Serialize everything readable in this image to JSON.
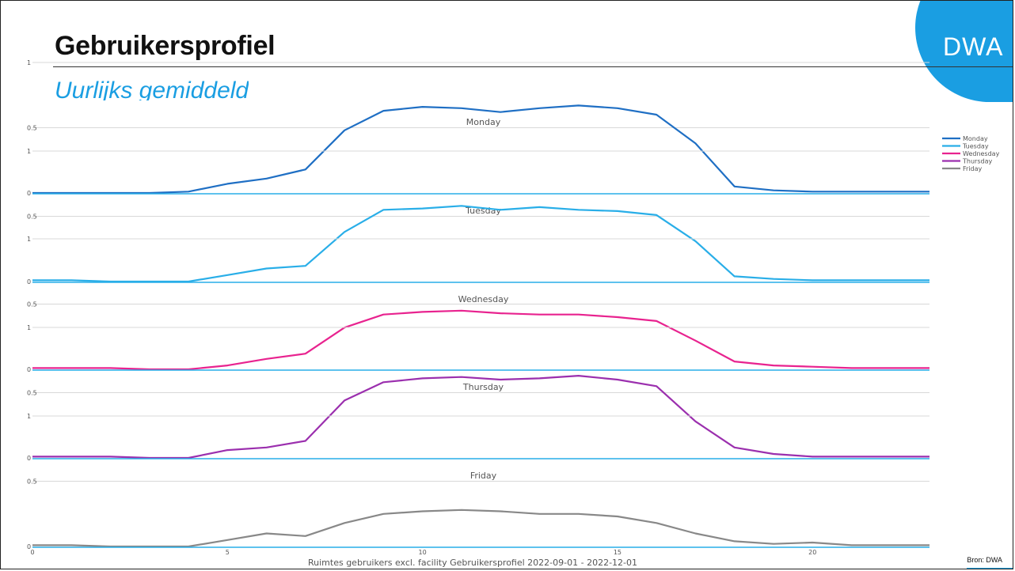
{
  "header": {
    "title": "Gebruikersprofiel",
    "subtitle": "Uurlijks gemiddeld",
    "logo_text": "DWA",
    "source": "Bron: DWA"
  },
  "colors": {
    "accent": "#1a9ee2",
    "title": "#111111"
  },
  "chart_data": {
    "type": "line",
    "xlabel": "Ruimtes gebruikers excl. facility Gebruikersprofiel 2022-09-01 - 2022-12-01",
    "xlim": [
      0,
      23
    ],
    "x_ticks": [
      0,
      5,
      10,
      15,
      20
    ],
    "ylim": [
      0,
      1
    ],
    "y_ticks": [
      "0",
      "0.5",
      "1"
    ],
    "grid": true,
    "legend_position": "top-right",
    "x": [
      0,
      1,
      2,
      3,
      4,
      5,
      6,
      7,
      8,
      9,
      10,
      11,
      12,
      13,
      14,
      15,
      16,
      17,
      18,
      19,
      20,
      21,
      22,
      23
    ],
    "series": [
      {
        "name": "Monday",
        "color": "#1f6fc4",
        "values": [
          0,
          0,
          0,
          0,
          0.01,
          0.07,
          0.11,
          0.18,
          0.48,
          0.63,
          0.66,
          0.65,
          0.62,
          0.65,
          0.67,
          0.65,
          0.6,
          0.38,
          0.05,
          0.02,
          0.01,
          0.01,
          0.01,
          0.01
        ]
      },
      {
        "name": "Tuesday",
        "color": "#29aee8",
        "values": [
          0.01,
          0.01,
          0,
          0,
          0,
          0.05,
          0.1,
          0.12,
          0.38,
          0.55,
          0.56,
          0.58,
          0.55,
          0.57,
          0.55,
          0.54,
          0.51,
          0.31,
          0.04,
          0.02,
          0.01,
          0.01,
          0.01,
          0.01
        ]
      },
      {
        "name": "Wednesday",
        "color": "#e8238f",
        "values": [
          0.01,
          0.01,
          0.01,
          0,
          0,
          0.03,
          0.08,
          0.12,
          0.32,
          0.42,
          0.44,
          0.45,
          0.43,
          0.42,
          0.42,
          0.4,
          0.37,
          0.22,
          0.06,
          0.03,
          0.02,
          0.01,
          0.01,
          0.01
        ]
      },
      {
        "name": "Thursday",
        "color": "#9b2fae",
        "values": [
          0.01,
          0.01,
          0.01,
          0,
          0,
          0.06,
          0.08,
          0.13,
          0.44,
          0.58,
          0.61,
          0.62,
          0.6,
          0.61,
          0.63,
          0.6,
          0.55,
          0.28,
          0.08,
          0.03,
          0.01,
          0.01,
          0.01,
          0.01
        ]
      },
      {
        "name": "Friday",
        "color": "#888888",
        "values": [
          0.01,
          0.01,
          0,
          0,
          0,
          0.05,
          0.1,
          0.08,
          0.18,
          0.25,
          0.27,
          0.28,
          0.27,
          0.25,
          0.25,
          0.23,
          0.18,
          0.1,
          0.04,
          0.02,
          0.03,
          0.01,
          0.01,
          0.01
        ]
      }
    ]
  }
}
